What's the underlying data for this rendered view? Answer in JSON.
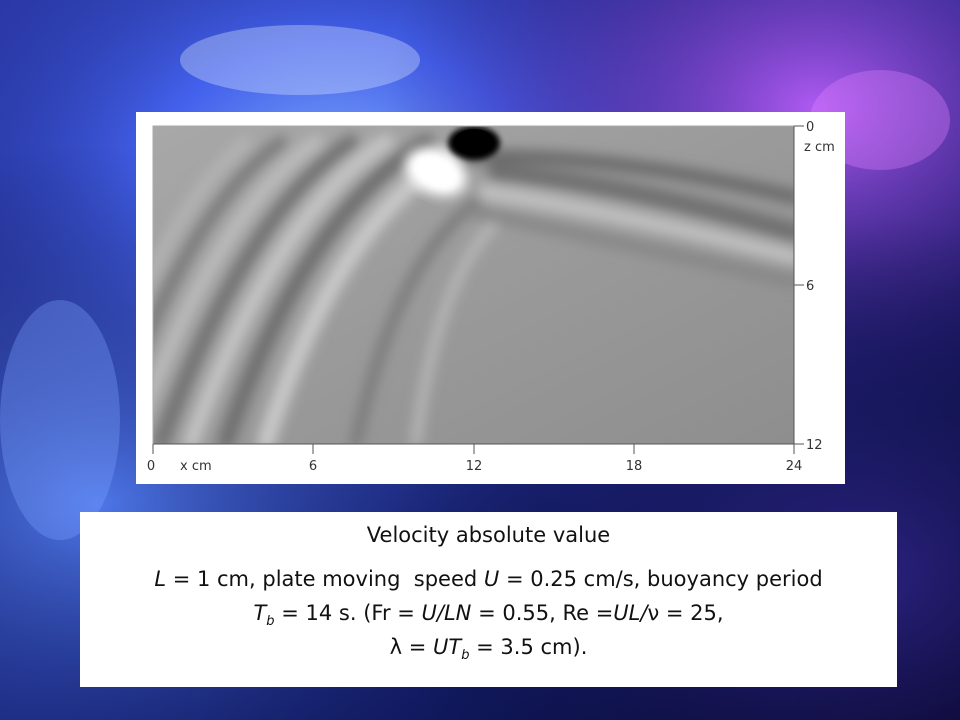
{
  "figure": {
    "x_axis": {
      "label": "x cm",
      "ticks": [
        "0",
        "6",
        "12",
        "18",
        "24"
      ],
      "range": [
        0,
        24
      ]
    },
    "z_axis": {
      "label": "z cm",
      "ticks": [
        "0",
        "6",
        "12"
      ],
      "range": [
        0,
        12
      ]
    }
  },
  "caption": {
    "title": "Velocity absolute value",
    "line1": {
      "L": "L",
      "part_a": " = 1 cm, plate moving  speed ",
      "U": "U",
      "part_b": " = 0.25 cm/s, buoyancy period"
    },
    "line2": {
      "T": "T",
      "sub_b": "b",
      "part_a": " = 14 s. (Fr = ",
      "ULN": "U/LN",
      "part_b": " = 0.55, Re =",
      "UL": "UL",
      "slash": "/",
      "nu": "ν",
      "part_c": " = 25,"
    },
    "line3": {
      "lambda": "λ",
      "part_a": " = ",
      "UT": "UT",
      "sub_b": "b",
      "part_b": " = 3.5 cm)."
    }
  },
  "colors": {
    "background_dark": "#0a0a3a",
    "background_blue": "#3a6cff",
    "background_purple": "#8a3cff",
    "field_gray": "#9a9a9a",
    "caption_text": "#111111"
  }
}
